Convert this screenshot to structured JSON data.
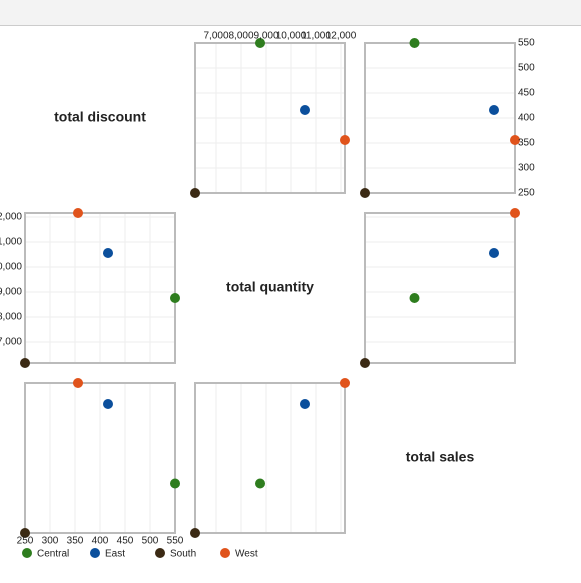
{
  "chart_data": {
    "type": "splom",
    "variables": [
      {
        "name": "total discount",
        "lim": [
          250,
          550
        ],
        "ticks": [
          250,
          300,
          350,
          400,
          450,
          500,
          550
        ]
      },
      {
        "name": "total quantity",
        "lim": [
          6160,
          12160
        ],
        "ticks": [
          {
            "value": 7000,
            "label": "7,000"
          },
          {
            "value": 8000,
            "label": "8,000"
          },
          {
            "value": 9000,
            "label": "9,000"
          },
          {
            "value": 10000,
            "label": "10,000"
          },
          {
            "value": 11000,
            "label": "11,000"
          },
          {
            "value": 12000,
            "label": "12,000"
          }
        ]
      },
      {
        "name": "total sales",
        "lim": [
          0,
          100
        ]
      }
    ],
    "series": [
      {
        "name": "Central",
        "color": "#2e7d1e",
        "values": [
          550,
          8760,
          33
        ]
      },
      {
        "name": "East",
        "color": "#0b4f9c",
        "values": [
          416,
          10560,
          86
        ]
      },
      {
        "name": "South",
        "color": "#3b2a14",
        "values": [
          250,
          6160,
          0
        ]
      },
      {
        "name": "West",
        "color": "#e0531b",
        "values": [
          356,
          12160,
          100
        ]
      }
    ],
    "grid": true
  }
}
